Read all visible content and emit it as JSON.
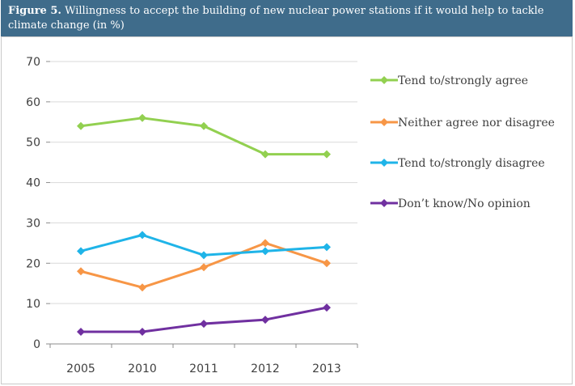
{
  "figure": {
    "label": "Figure 5.",
    "title": "Willingness to accept the building of new nuclear power stations if it would help to tackle climate change (in %)"
  },
  "chart_data": {
    "type": "line",
    "categories": [
      "2005",
      "2010",
      "2011",
      "2012",
      "2013"
    ],
    "ylim": [
      0,
      70
    ],
    "yticks": [
      0,
      10,
      20,
      30,
      40,
      50,
      60,
      70
    ],
    "grid": true,
    "legend_position": "right",
    "series": [
      {
        "name": "Tend to/strongly agree",
        "color": "#92d050",
        "values": [
          54,
          56,
          54,
          47,
          47
        ]
      },
      {
        "name": "Neither agree nor disagree",
        "color": "#f79646",
        "values": [
          18,
          14,
          19,
          25,
          20
        ]
      },
      {
        "name": "Tend to/strongly disagree",
        "color": "#1fb4e8",
        "values": [
          23,
          27,
          22,
          23,
          24
        ]
      },
      {
        "name": "Don’t know/No opinion",
        "color": "#7030a0",
        "values": [
          3,
          3,
          5,
          6,
          9
        ]
      }
    ]
  }
}
